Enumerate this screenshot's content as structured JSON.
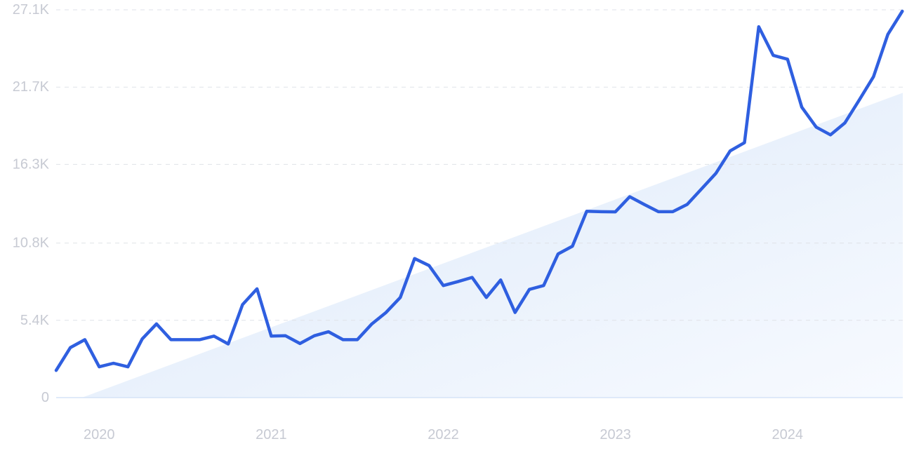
{
  "chart_data": {
    "type": "line",
    "title": "",
    "xlabel": "",
    "ylabel": "",
    "grid": true,
    "y_ticks": [
      "0",
      "5.4K",
      "10.8K",
      "16.3K",
      "21.7K",
      "27.1K"
    ],
    "y_tick_values": [
      0,
      5400,
      10800,
      16300,
      21700,
      27100
    ],
    "x_ticks": [
      "2020",
      "2021",
      "2022",
      "2023",
      "2024"
    ],
    "x_tick_values": [
      2020.0,
      2021.0,
      2022.0,
      2023.0,
      2024.0
    ],
    "ylim": [
      0,
      27100
    ],
    "xlim": [
      2019.75,
      2024.67
    ],
    "colors": {
      "line": "#2f5fe0",
      "trend_fill": "#e3eefb"
    },
    "series": [
      {
        "x": [
          2019.75,
          2019.833,
          2019.917,
          2020.0,
          2020.083,
          2020.167,
          2020.25,
          2020.333,
          2020.417,
          2020.5,
          2020.583,
          2020.667,
          2020.75,
          2020.833,
          2020.917,
          2021.0,
          2021.083,
          2021.167,
          2021.25,
          2021.333,
          2021.417,
          2021.5,
          2021.583,
          2021.667,
          2021.75,
          2021.833,
          2021.917,
          2022.0,
          2022.083,
          2022.167,
          2022.25,
          2022.333,
          2022.417,
          2022.5,
          2022.583,
          2022.667,
          2022.75,
          2022.833,
          2022.917,
          2023.0,
          2023.083,
          2023.167,
          2023.25,
          2023.333,
          2023.417,
          2023.5,
          2023.583,
          2023.667,
          2023.75,
          2023.833,
          2023.917,
          2024.0,
          2024.083,
          2024.167,
          2024.25,
          2024.333,
          2024.417,
          2024.5,
          2024.583,
          2024.667
        ],
        "values": [
          1900,
          3500,
          4050,
          2150,
          2400,
          2150,
          4100,
          5150,
          4050,
          4050,
          4050,
          4300,
          3750,
          6500,
          7600,
          4300,
          4320,
          3780,
          4320,
          4600,
          4050,
          4050,
          5130,
          5950,
          7000,
          9720,
          9230,
          7830,
          8100,
          8400,
          7000,
          8220,
          5950,
          7560,
          7830,
          10040,
          10580,
          13020,
          12990,
          12980,
          14040,
          13500,
          12990,
          12990,
          13500,
          14580,
          15660,
          17240,
          17820,
          25920,
          23920,
          23650,
          20300,
          18900,
          18360,
          19190,
          20800,
          22430,
          25380,
          27000
        ]
      }
    ],
    "trend_area": {
      "x": [
        2019.9,
        2024.67
      ],
      "y": [
        0,
        21300
      ]
    }
  }
}
